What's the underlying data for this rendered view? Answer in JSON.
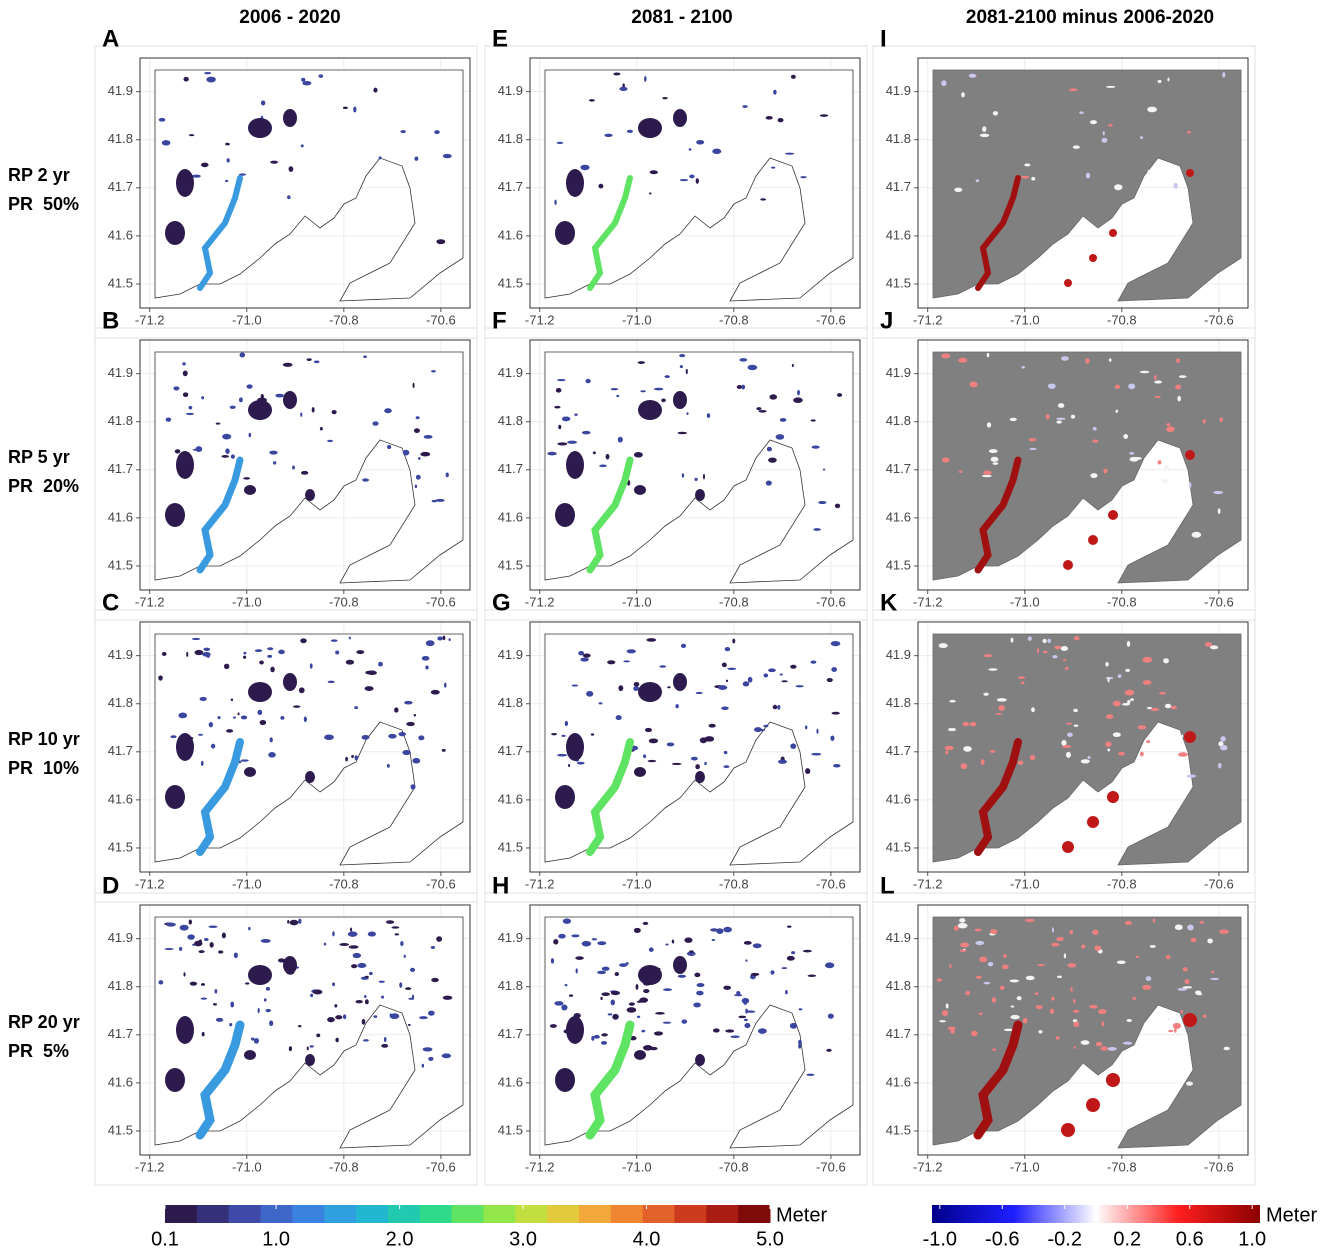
{
  "column_titles": [
    "2006 - 2020",
    "2081 - 2100",
    "2081-2100 minus 2006-2020"
  ],
  "row_labels": [
    [
      "RP 2 yr",
      "PR  50%"
    ],
    [
      "RP 5 yr",
      "PR  20%"
    ],
    [
      "RP 10 yr",
      "PR  10%"
    ],
    [
      "RP 20 yr",
      "PR  5%"
    ]
  ],
  "panel_letters": [
    [
      "A",
      "B",
      "C",
      "D"
    ],
    [
      "E",
      "F",
      "G",
      "H"
    ],
    [
      "I",
      "J",
      "K",
      "L"
    ]
  ],
  "map": {
    "xlim": [
      -71.22,
      -70.54
    ],
    "ylim": [
      41.45,
      41.97
    ],
    "xticks": [
      -71.2,
      {
        "value": -71,
        "label": "-71.0"
      },
      -70.8,
      -70.6
    ],
    "yticks": [
      41.5,
      41.6,
      41.7,
      41.8,
      41.9
    ]
  },
  "colorbars": [
    {
      "unit": "Meter",
      "lim": [
        0.1,
        5.0
      ],
      "ticks": [
        0.1,
        {
          "value": 1,
          "label": "1.0"
        },
        {
          "value": 2,
          "label": "2.0"
        },
        {
          "value": 3,
          "label": "3.0"
        },
        {
          "value": 4,
          "label": "4.0"
        },
        {
          "value": 5,
          "label": "5.0"
        }
      ],
      "colors": [
        "#2d1b4e",
        "#35307a",
        "#3f4aa8",
        "#3f66c9",
        "#3a82e0",
        "#2f9fe0",
        "#22b7d0",
        "#21c9b0",
        "#2fd98a",
        "#5fe362",
        "#93e64a",
        "#c3df3f",
        "#e3c93c",
        "#f3a93a",
        "#f08631",
        "#e3612a",
        "#cc3b1e",
        "#a81c14",
        "#7e0a0a"
      ]
    },
    {
      "unit": "Meter",
      "lim": [
        -1.05,
        1.05
      ],
      "ticks": [
        {
          "value": -1,
          "label": "-1.0"
        },
        -0.6,
        -0.2,
        0.2,
        0.6,
        {
          "value": 1,
          "label": "1.0"
        }
      ],
      "colors": [
        "#00008b",
        "#1f1fff",
        "#ffffff",
        "#ff1f1f",
        "#8b0000"
      ]
    }
  ]
}
